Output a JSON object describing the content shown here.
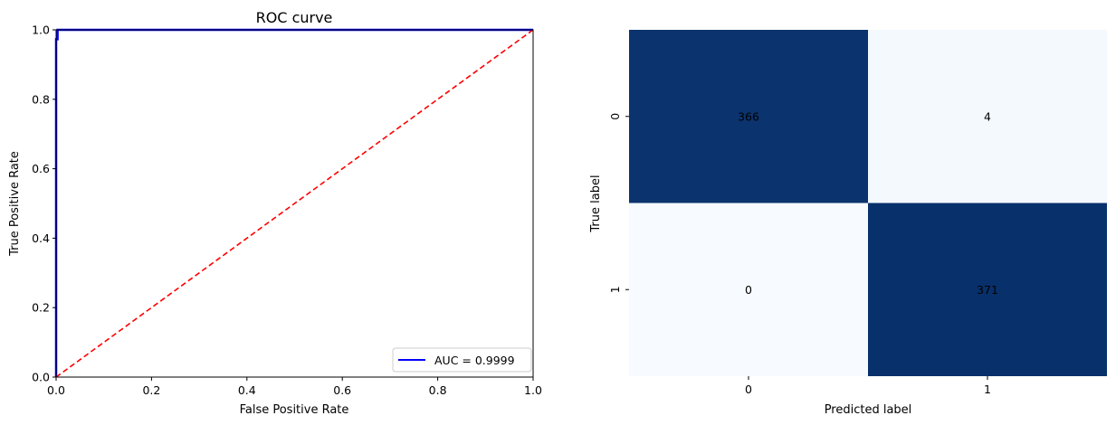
{
  "chart_data": [
    {
      "type": "line",
      "title": "ROC curve",
      "xlabel": "False Positive Rate",
      "ylabel": "True Positive Rate",
      "xlim": [
        0,
        1
      ],
      "ylim": [
        0,
        1
      ],
      "xticks": [
        "0.0",
        "0.2",
        "0.4",
        "0.6",
        "0.8",
        "1.0"
      ],
      "yticks": [
        "0.0",
        "0.2",
        "0.4",
        "0.6",
        "0.8",
        "1.0"
      ],
      "grid": false,
      "legend_position": "lower-right",
      "series": [
        {
          "name": "AUC = 0.9999",
          "color": "#0000ff",
          "style": "solid",
          "x": [
            0.0,
            0.0,
            0.0,
            0.003,
            0.003,
            1.0
          ],
          "y": [
            0.0,
            0.0,
            0.973,
            0.973,
            1.0,
            1.0
          ]
        },
        {
          "color": "#ff0000",
          "style": "dashed",
          "x": [
            0,
            1
          ],
          "y": [
            0,
            1
          ]
        }
      ]
    },
    {
      "type": "heatmap",
      "xlabel": "Predicted label",
      "ylabel": "True label",
      "x_categories": [
        "0",
        "1"
      ],
      "y_categories": [
        "0",
        "1"
      ],
      "values": [
        [
          366,
          4
        ],
        [
          0,
          371
        ]
      ],
      "colormap": "Blues",
      "colors": {
        "low": "#f7fbff",
        "high": "#08306b"
      },
      "colorbar": false
    }
  ]
}
